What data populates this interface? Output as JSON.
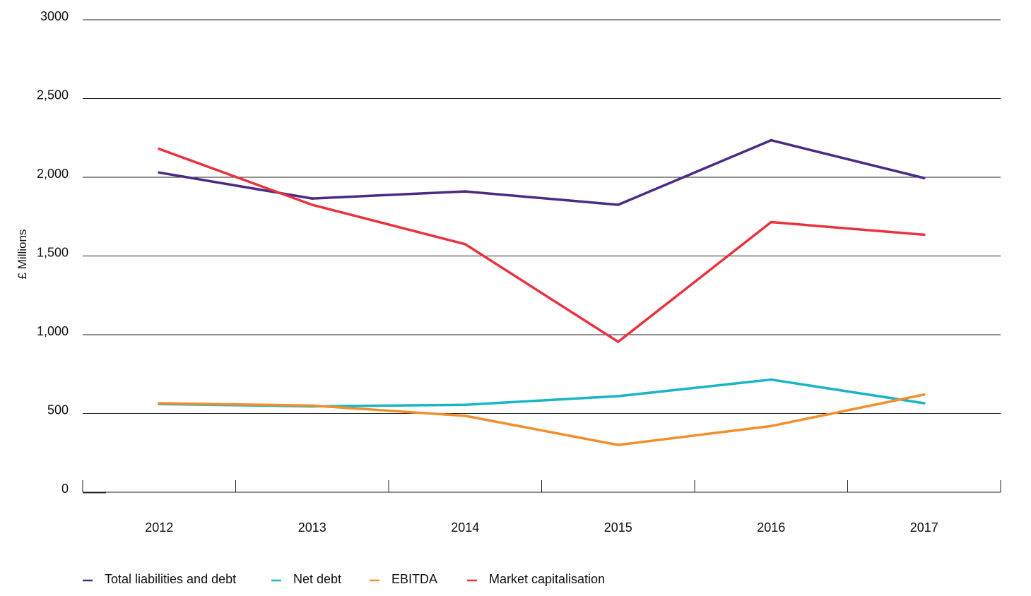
{
  "chart_data": {
    "type": "line",
    "title": "",
    "xlabel": "",
    "ylabel": "£ Millions",
    "categories": [
      "2012",
      "2013",
      "2014",
      "2015",
      "2016",
      "2017"
    ],
    "ylim": [
      0,
      3000
    ],
    "yticks": [
      {
        "value": 0,
        "label": "0"
      },
      {
        "value": 500,
        "label": "500"
      },
      {
        "value": 1000,
        "label": "1,000"
      },
      {
        "value": 1500,
        "label": "1,500"
      },
      {
        "value": 2000,
        "label": "2,000"
      },
      {
        "value": 2500,
        "label": "2,500"
      },
      {
        "value": 3000,
        "label": "3000"
      }
    ],
    "grid": true,
    "legend_position": "bottom-left",
    "series": [
      {
        "name": "Total liabilities and debt",
        "color": "#4B2A85",
        "values": [
          2030,
          1865,
          1910,
          1825,
          2235,
          1995
        ]
      },
      {
        "name": "Net debt",
        "color": "#19B5C6",
        "values": [
          560,
          545,
          555,
          610,
          715,
          565
        ]
      },
      {
        "name": "EBITDA",
        "color": "#F28E2B",
        "values": [
          565,
          550,
          485,
          300,
          420,
          620
        ]
      },
      {
        "name": "Market capitalisation",
        "color": "#E8333F",
        "values": [
          2180,
          1825,
          1575,
          955,
          1715,
          1635
        ]
      }
    ]
  }
}
